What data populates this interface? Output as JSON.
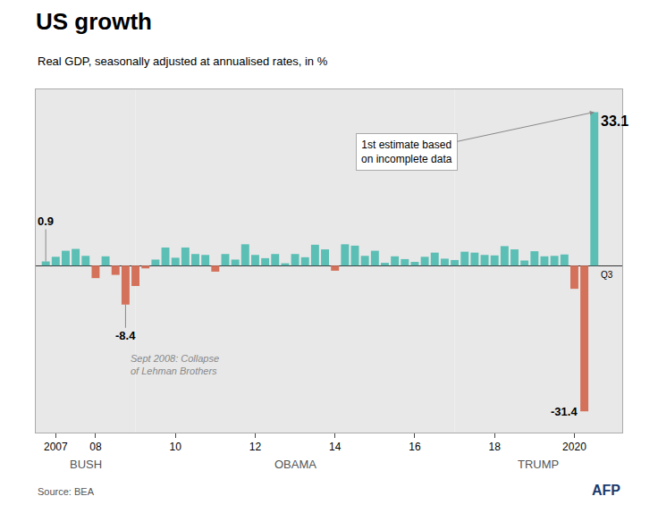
{
  "chart_data": {
    "type": "bar",
    "title": "US growth",
    "subtitle": "Real GDP, seasonally adjusted at annualised rates, in %",
    "x": [
      2006.75,
      2007.0,
      2007.25,
      2007.5,
      2007.75,
      2008.0,
      2008.25,
      2008.5,
      2008.75,
      2009.0,
      2009.25,
      2009.5,
      2009.75,
      2010.0,
      2010.25,
      2010.5,
      2010.75,
      2011.0,
      2011.25,
      2011.5,
      2011.75,
      2012.0,
      2012.25,
      2012.5,
      2012.75,
      2013.0,
      2013.25,
      2013.5,
      2013.75,
      2014.0,
      2014.25,
      2014.5,
      2014.75,
      2015.0,
      2015.25,
      2015.5,
      2015.75,
      2016.0,
      2016.25,
      2016.5,
      2016.75,
      2017.0,
      2017.25,
      2017.5,
      2017.75,
      2018.0,
      2018.25,
      2018.5,
      2018.75,
      2019.0,
      2019.25,
      2019.5,
      2019.75,
      2020.0,
      2020.25,
      2020.5
    ],
    "values": [
      0.9,
      1.9,
      3.2,
      3.6,
      2.1,
      -2.7,
      2.0,
      -2.0,
      -8.4,
      -4.4,
      -0.6,
      1.3,
      3.9,
      1.7,
      3.9,
      2.5,
      2.3,
      -1.3,
      2.5,
      1.3,
      4.6,
      2.3,
      1.6,
      2.5,
      0.5,
      2.5,
      1.8,
      4.5,
      3.5,
      -1.1,
      4.6,
      4.3,
      2.1,
      3.2,
      0.6,
      2.0,
      1.4,
      0.8,
      1.9,
      2.8,
      1.5,
      1.2,
      3.0,
      2.8,
      2.3,
      2.2,
      4.2,
      3.5,
      1.1,
      3.1,
      2.0,
      2.1,
      2.4,
      -5.0,
      -31.4,
      33.1
    ],
    "colors": [
      "#5bbfb5",
      "#5bbfb5",
      "#5bbfb5",
      "#5bbfb5",
      "#5bbfb5",
      "#d4715a",
      "#5bbfb5",
      "#d4715a",
      "#d4715a",
      "#d4715a",
      "#d4715a",
      "#5bbfb5",
      "#5bbfb5",
      "#5bbfb5",
      "#5bbfb5",
      "#5bbfb5",
      "#5bbfb5",
      "#d4715a",
      "#5bbfb5",
      "#5bbfb5",
      "#5bbfb5",
      "#5bbfb5",
      "#5bbfb5",
      "#5bbfb5",
      "#5bbfb5",
      "#5bbfb5",
      "#5bbfb5",
      "#5bbfb5",
      "#5bbfb5",
      "#d4715a",
      "#5bbfb5",
      "#5bbfb5",
      "#5bbfb5",
      "#5bbfb5",
      "#5bbfb5",
      "#5bbfb5",
      "#5bbfb5",
      "#5bbfb5",
      "#5bbfb5",
      "#5bbfb5",
      "#5bbfb5",
      "#5bbfb5",
      "#5bbfb5",
      "#5bbfb5",
      "#5bbfb5",
      "#5bbfb5",
      "#5bbfb5",
      "#5bbfb5",
      "#5bbfb5",
      "#5bbfb5",
      "#5bbfb5",
      "#5bbfb5",
      "#5bbfb5",
      "#d4715a",
      "#d4715a",
      "#5bbfb5"
    ],
    "xlim": [
      2006.5,
      2021.2
    ],
    "xticks": [
      2007,
      {
        "value": 2008,
        "label": "08"
      },
      {
        "value": 2010,
        "label": "10"
      },
      {
        "value": 2012,
        "label": "12"
      },
      {
        "value": 2014,
        "label": "14"
      },
      {
        "value": 2016,
        "label": "16"
      },
      {
        "value": 2018,
        "label": "18"
      },
      2020
    ],
    "ylim": [
      -36,
      38
    ],
    "tick_labels": "x",
    "grid": false,
    "periods": [
      {
        "name": "BUSH",
        "start": 2006.5,
        "end": 2009.0,
        "color": "#e8e8e8"
      },
      {
        "name": "OBAMA",
        "start": 2009.0,
        "end": 2017.0,
        "color": "#e8e8e8"
      },
      {
        "name": "TRUMP",
        "start": 2017.0,
        "end": 2021.2,
        "color": "#e8e8e8"
      }
    ],
    "annotations": [
      {
        "text": "0.9",
        "x": 2006.75,
        "y": 0.9
      },
      {
        "text": "-8.4",
        "x": 2008.75,
        "y": -8.4
      },
      {
        "text": "Sept 2008: Collapse\nof Lehman Brothers",
        "x": 2008.75,
        "y": -8.4
      },
      {
        "text": "33.1",
        "x": 2020.5,
        "y": 33.1
      },
      {
        "text": "-31.4",
        "x": 2020.25,
        "y": -31.4
      },
      {
        "text": "Q3",
        "x": 2020.5,
        "y": 0
      },
      {
        "text": "1st estimate based\non incomplete data",
        "x": 2020.5,
        "y": 33.1
      }
    ],
    "source": "Source: BEA",
    "credit": "AFP"
  }
}
